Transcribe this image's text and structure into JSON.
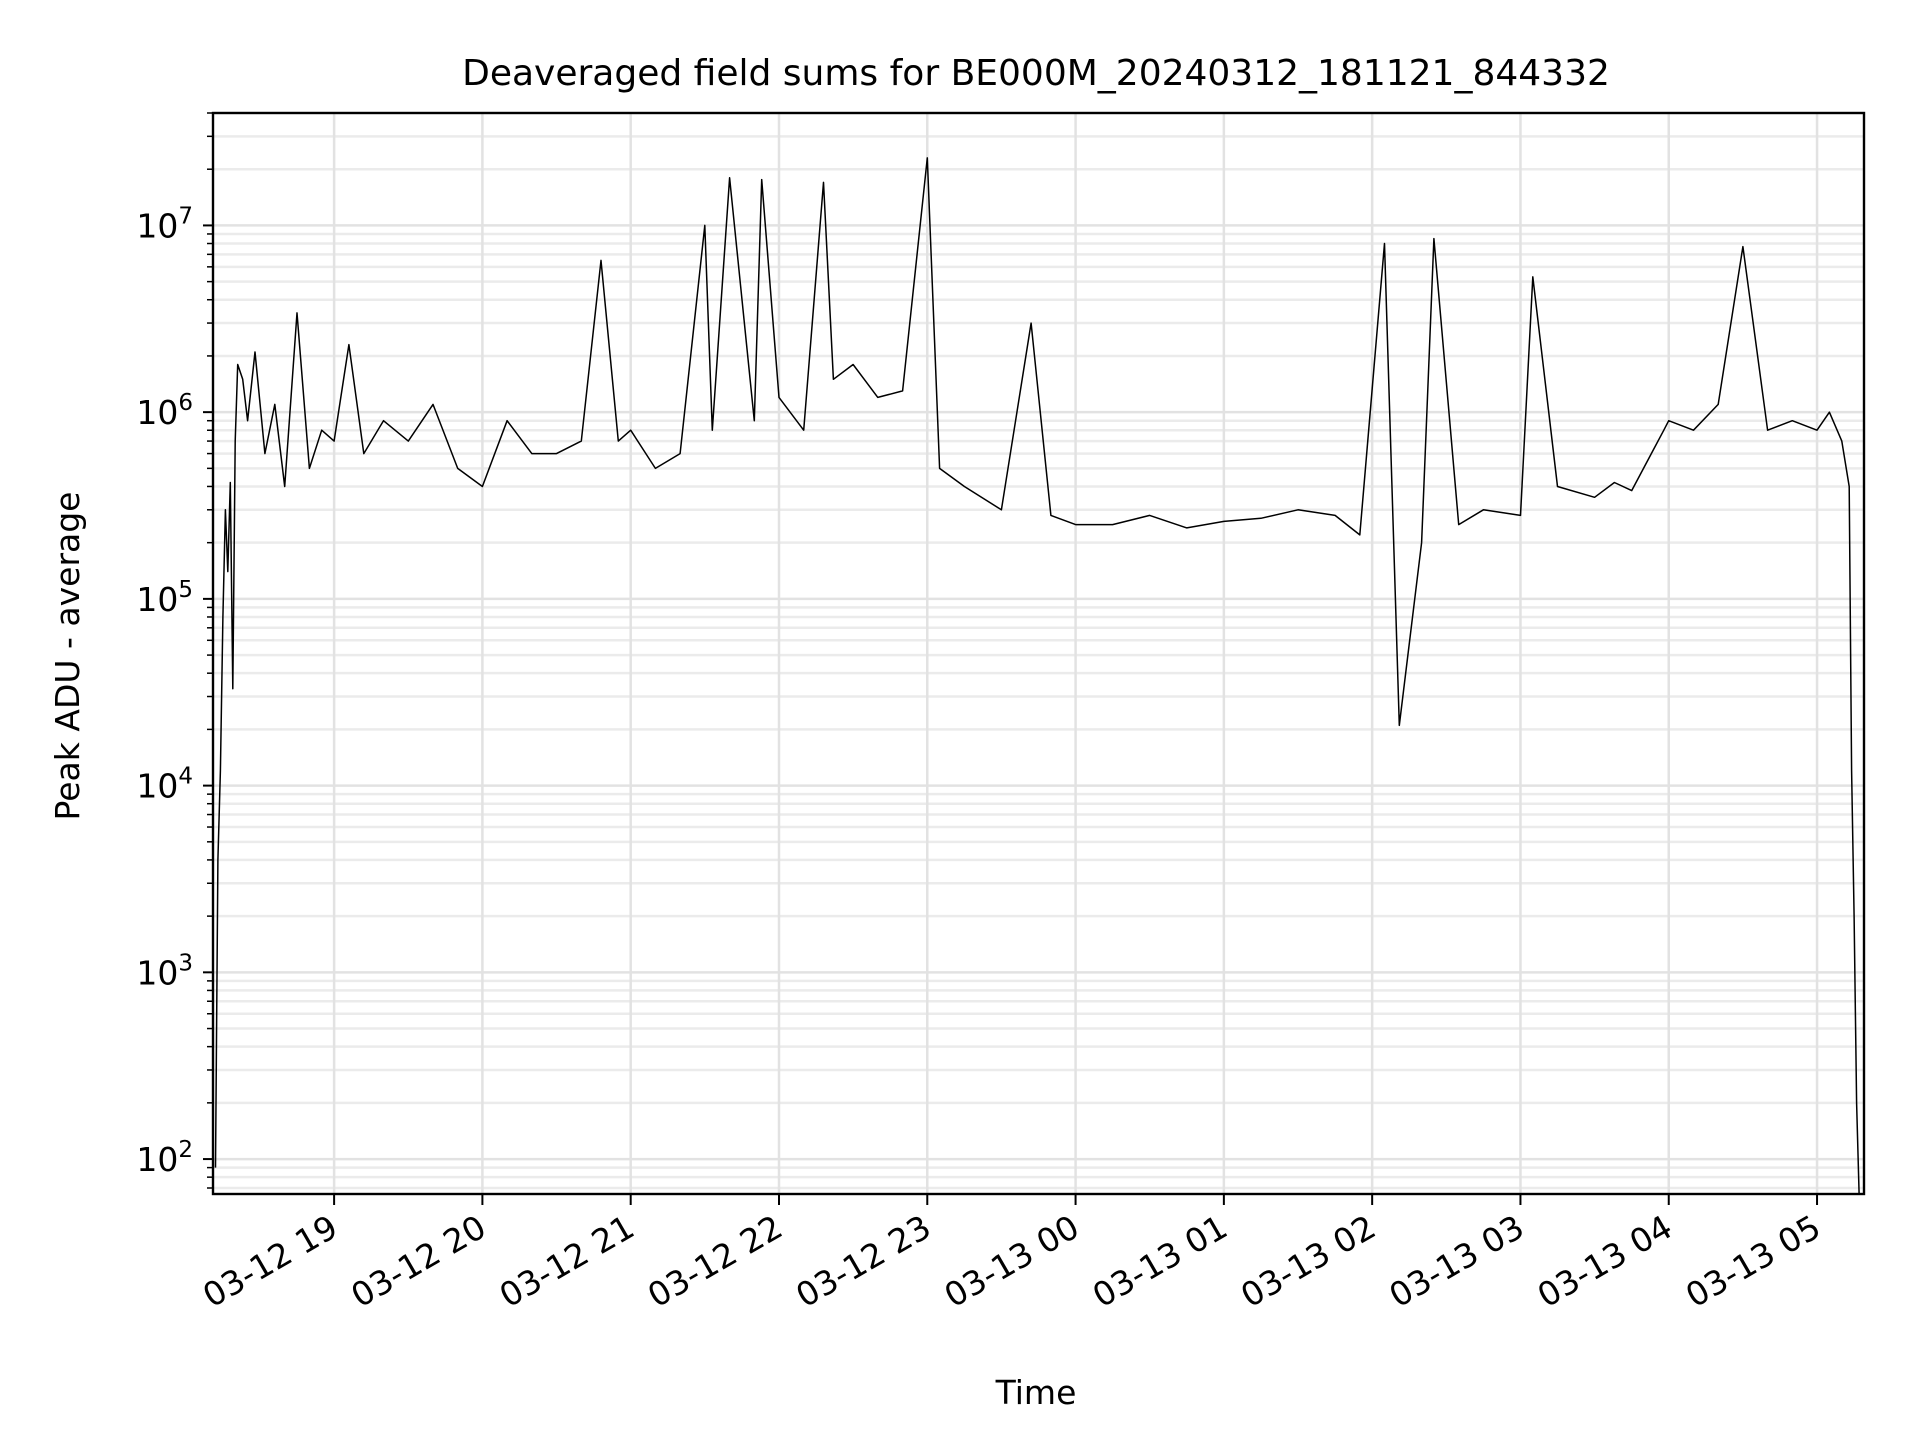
{
  "chart_data": {
    "type": "line",
    "title": "Deaveraged field sums for BE000M_20240312_181121_844332",
    "xlabel": "Time",
    "ylabel": "Peak ADU - average",
    "yscale": "log",
    "grid": true,
    "grid_minor": true,
    "xlim": [
      "2024-03-12 18:11",
      "2024-03-13 05:19"
    ],
    "ylim": [
      65,
      40000000
    ],
    "x_ticks": [
      {
        "t": "2024-03-12 19:00",
        "label": "03-12 19"
      },
      {
        "t": "2024-03-12 20:00",
        "label": "03-12 20"
      },
      {
        "t": "2024-03-12 21:00",
        "label": "03-12 21"
      },
      {
        "t": "2024-03-12 22:00",
        "label": "03-12 22"
      },
      {
        "t": "2024-03-12 23:00",
        "label": "03-12 23"
      },
      {
        "t": "2024-03-13 00:00",
        "label": "03-13 00"
      },
      {
        "t": "2024-03-13 01:00",
        "label": "03-13 01"
      },
      {
        "t": "2024-03-13 02:00",
        "label": "03-13 02"
      },
      {
        "t": "2024-03-13 03:00",
        "label": "03-13 03"
      },
      {
        "t": "2024-03-13 04:00",
        "label": "03-13 04"
      },
      {
        "t": "2024-03-13 05:00",
        "label": "03-13 05"
      }
    ],
    "y_ticks": [
      {
        "value": 100,
        "base": "10",
        "exp": "2"
      },
      {
        "value": 1000,
        "base": "10",
        "exp": "3"
      },
      {
        "value": 10000,
        "base": "10",
        "exp": "4"
      },
      {
        "value": 100000,
        "base": "10",
        "exp": "5"
      },
      {
        "value": 1000000,
        "base": "10",
        "exp": "6"
      },
      {
        "value": 10000000,
        "base": "10",
        "exp": "7"
      }
    ],
    "series": [
      {
        "color": "#000000",
        "x": [
          "2024-03-12 18:12",
          "2024-03-12 18:13",
          "2024-03-12 18:14",
          "2024-03-12 18:15",
          "2024-03-12 18:16",
          "2024-03-12 18:17",
          "2024-03-12 18:18",
          "2024-03-12 18:19",
          "2024-03-12 18:20",
          "2024-03-12 18:21",
          "2024-03-12 18:23",
          "2024-03-12 18:25",
          "2024-03-12 18:28",
          "2024-03-12 18:32",
          "2024-03-12 18:36",
          "2024-03-12 18:40",
          "2024-03-12 18:45",
          "2024-03-12 18:50",
          "2024-03-12 18:55",
          "2024-03-12 19:00",
          "2024-03-12 19:06",
          "2024-03-12 19:12",
          "2024-03-12 19:20",
          "2024-03-12 19:30",
          "2024-03-12 19:40",
          "2024-03-12 19:50",
          "2024-03-12 20:00",
          "2024-03-12 20:10",
          "2024-03-12 20:20",
          "2024-03-12 20:30",
          "2024-03-12 20:40",
          "2024-03-12 20:48",
          "2024-03-12 20:55",
          "2024-03-12 21:00",
          "2024-03-12 21:10",
          "2024-03-12 21:20",
          "2024-03-12 21:30",
          "2024-03-12 21:33",
          "2024-03-12 21:40",
          "2024-03-12 21:50",
          "2024-03-12 21:53",
          "2024-03-12 22:00",
          "2024-03-12 22:10",
          "2024-03-12 22:18",
          "2024-03-12 22:22",
          "2024-03-12 22:30",
          "2024-03-12 22:40",
          "2024-03-12 22:50",
          "2024-03-12 23:00",
          "2024-03-12 23:05",
          "2024-03-12 23:15",
          "2024-03-12 23:30",
          "2024-03-12 23:42",
          "2024-03-12 23:50",
          "2024-03-13 00:00",
          "2024-03-13 00:15",
          "2024-03-13 00:30",
          "2024-03-13 00:45",
          "2024-03-13 01:00",
          "2024-03-13 01:15",
          "2024-03-13 01:30",
          "2024-03-13 01:45",
          "2024-03-13 01:55",
          "2024-03-13 02:05",
          "2024-03-13 02:11",
          "2024-03-13 02:20",
          "2024-03-13 02:25",
          "2024-03-13 02:35",
          "2024-03-13 02:45",
          "2024-03-13 03:00",
          "2024-03-13 03:05",
          "2024-03-13 03:15",
          "2024-03-13 03:30",
          "2024-03-13 03:38",
          "2024-03-13 03:45",
          "2024-03-13 03:58",
          "2024-03-13 04:00",
          "2024-03-13 04:10",
          "2024-03-13 04:20",
          "2024-03-13 04:30",
          "2024-03-13 04:40",
          "2024-03-13 04:50",
          "2024-03-13 05:00",
          "2024-03-13 05:05",
          "2024-03-13 05:10",
          "2024-03-13 05:13",
          "2024-03-13 05:14",
          "2024-03-13 05:15",
          "2024-03-13 05:16",
          "2024-03-13 05:17"
        ],
        "y": [
          90,
          4000,
          12000,
          80000,
          300000,
          140000,
          420000,
          33000,
          700000,
          1800000,
          1500000,
          900000,
          2100000,
          600000,
          1100000,
          400000,
          3400000,
          500000,
          800000,
          700000,
          2300000,
          600000,
          900000,
          700000,
          1100000,
          500000,
          400000,
          900000,
          600000,
          600000,
          700000,
          6500000,
          700000,
          800000,
          500000,
          600000,
          10000000,
          800000,
          18000000,
          900000,
          17600000,
          1200000,
          800000,
          17000000,
          1500000,
          1800000,
          1200000,
          1300000,
          23000000,
          500000,
          400000,
          300000,
          3000000,
          280000,
          250000,
          250000,
          280000,
          240000,
          260000,
          270000,
          300000,
          280000,
          220000,
          8000000,
          21000,
          200000,
          8500000,
          250000,
          300000,
          280000,
          5300000,
          400000,
          350000,
          420000,
          380000,
          800000,
          900000,
          800000,
          1100000,
          7700000,
          800000,
          900000,
          800000,
          1000000,
          700000,
          400000,
          12000,
          2000,
          200,
          65
        ]
      }
    ]
  }
}
